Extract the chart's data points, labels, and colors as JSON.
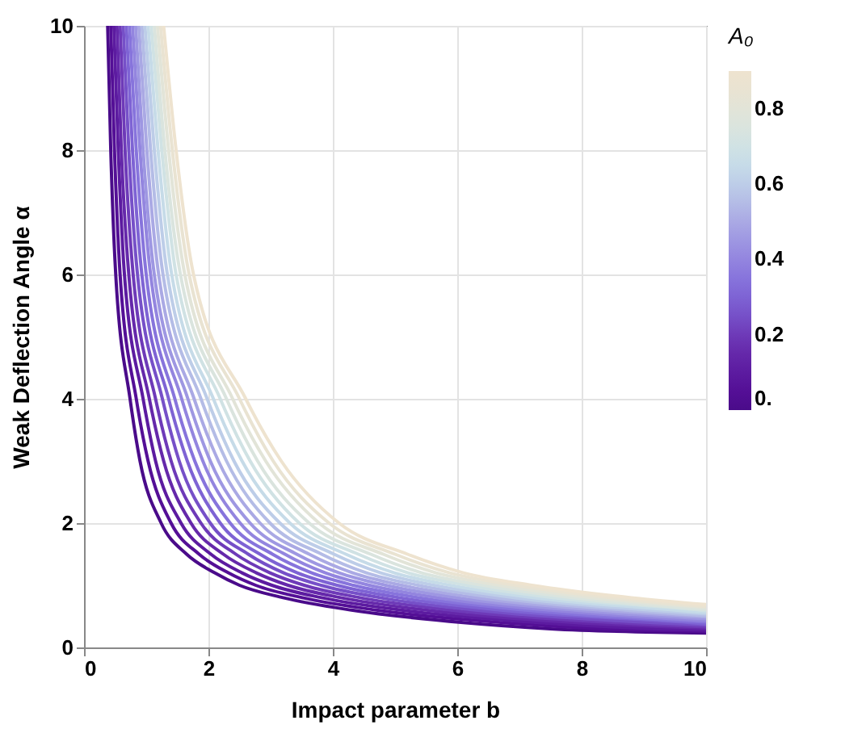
{
  "chart_data": {
    "type": "line",
    "xlabel": "Impact parameter b",
    "ylabel": "Weak Deflection Angle α",
    "legend_title": "A₀",
    "xlim": [
      0,
      10
    ],
    "ylim": [
      0,
      10
    ],
    "xticks": [
      0,
      2,
      4,
      6,
      8,
      10
    ],
    "yticks": [
      0,
      2,
      4,
      6,
      8,
      10
    ],
    "grid": true,
    "clim": [
      0,
      0.9
    ],
    "cticks": [
      {
        "value": 0,
        "label": "0."
      },
      0.2,
      0.4,
      0.6,
      0.8
    ],
    "series": [
      {
        "color": "#4a0b8a",
        "x": [
          0.38,
          0.43,
          0.51,
          0.74,
          0.9,
          1.24,
          1.65,
          2.1,
          2.5,
          3.2,
          4.3,
          6.1,
          7.5,
          10
        ],
        "values": [
          10,
          8,
          6,
          4,
          3,
          2,
          1.5,
          1.2,
          1.0,
          0.8,
          0.6,
          0.4,
          0.3,
          0.23
        ]
      },
      {
        "color": "#540f96",
        "x": [
          0.43,
          0.49,
          0.58,
          0.84,
          1.03,
          1.4,
          1.85,
          2.32,
          2.76,
          3.51,
          4.7,
          6.71,
          8.36,
          10
        ],
        "values": [
          10,
          8,
          6,
          4,
          3,
          2,
          1.5,
          1.2,
          1.0,
          0.8,
          0.6,
          0.4,
          0.3,
          0.26
        ]
      },
      {
        "color": "#5c1ba0",
        "x": [
          0.48,
          0.55,
          0.65,
          0.95,
          1.15,
          1.56,
          2.04,
          2.54,
          3.02,
          3.82,
          5.1,
          7.31,
          9.22,
          10
        ],
        "values": [
          10,
          8,
          6,
          4,
          3,
          2,
          1.5,
          1.2,
          1.0,
          0.8,
          0.6,
          0.4,
          0.3,
          0.28
        ]
      },
      {
        "color": "#6528aa",
        "x": [
          0.53,
          0.6,
          0.72,
          1.05,
          1.28,
          1.72,
          2.24,
          2.77,
          3.28,
          4.13,
          5.5,
          7.92,
          10
        ],
        "values": [
          10,
          8,
          6,
          4,
          3,
          2,
          1.5,
          1.2,
          1.0,
          0.8,
          0.6,
          0.4,
          0.31
        ]
      },
      {
        "color": "#6e3ab8",
        "x": [
          0.58,
          0.66,
          0.79,
          1.15,
          1.4,
          1.88,
          2.44,
          2.99,
          3.54,
          4.44,
          5.9,
          8.52,
          10
        ],
        "values": [
          10,
          8,
          6,
          4,
          3,
          2,
          1.5,
          1.2,
          1.0,
          0.8,
          0.6,
          0.4,
          0.33
        ]
      },
      {
        "color": "#7650c8",
        "x": [
          0.63,
          0.72,
          0.86,
          1.26,
          1.53,
          2.03,
          2.64,
          3.21,
          3.81,
          4.76,
          6.3,
          9.13,
          10
        ],
        "values": [
          10,
          8,
          6,
          4,
          3,
          2,
          1.5,
          1.2,
          1.0,
          0.8,
          0.6,
          0.4,
          0.36
        ]
      },
      {
        "color": "#7e63d4",
        "x": [
          0.68,
          0.78,
          0.93,
          1.36,
          1.66,
          2.19,
          2.83,
          3.43,
          4.07,
          5.07,
          6.7,
          9.73,
          10
        ],
        "values": [
          10,
          8,
          6,
          4,
          3,
          2,
          1.5,
          1.2,
          1.0,
          0.8,
          0.6,
          0.4,
          0.38
        ]
      },
      {
        "color": "#8774dc",
        "x": [
          0.73,
          0.84,
          1.0,
          1.46,
          1.78,
          2.35,
          3.03,
          3.66,
          4.33,
          5.38,
          7.1,
          10
        ],
        "values": [
          10,
          8,
          6,
          4,
          3,
          2,
          1.5,
          1.2,
          1.0,
          0.8,
          0.6,
          0.41
        ]
      },
      {
        "color": "#9385df",
        "x": [
          0.78,
          0.9,
          1.07,
          1.57,
          1.91,
          2.51,
          3.23,
          3.88,
          4.59,
          5.69,
          7.5,
          10
        ],
        "values": [
          10,
          8,
          6,
          4,
          3,
          2,
          1.5,
          1.2,
          1.0,
          0.8,
          0.6,
          0.43
        ]
      },
      {
        "color": "#9e97e2",
        "x": [
          0.83,
          0.95,
          1.13,
          1.67,
          2.03,
          2.67,
          3.42,
          4.1,
          4.85,
          6.0,
          7.9,
          10
        ],
        "values": [
          10,
          8,
          6,
          4,
          3,
          2,
          1.5,
          1.2,
          1.0,
          0.8,
          0.6,
          0.46
        ]
      },
      {
        "color": "#aaa9e4",
        "x": [
          0.88,
          1.01,
          1.2,
          1.77,
          2.16,
          2.83,
          3.62,
          4.32,
          5.11,
          6.31,
          8.3,
          10
        ],
        "values": [
          10,
          8,
          6,
          4,
          3,
          2,
          1.5,
          1.2,
          1.0,
          0.8,
          0.6,
          0.49
        ]
      },
      {
        "color": "#b4bce6",
        "x": [
          0.93,
          1.07,
          1.27,
          1.88,
          2.29,
          2.99,
          3.82,
          4.54,
          5.37,
          6.62,
          8.7,
          10
        ],
        "values": [
          10,
          8,
          6,
          4,
          3,
          2,
          1.5,
          1.2,
          1.0,
          0.8,
          0.6,
          0.51
        ]
      },
      {
        "color": "#bdcde8",
        "x": [
          0.98,
          1.13,
          1.34,
          1.98,
          2.41,
          3.15,
          4.02,
          4.77,
          5.63,
          6.93,
          9.1,
          10
        ],
        "values": [
          10,
          8,
          6,
          4,
          3,
          2,
          1.5,
          1.2,
          1.0,
          0.8,
          0.6,
          0.54
        ]
      },
      {
        "color": "#c6dbe8",
        "x": [
          1.03,
          1.19,
          1.41,
          2.08,
          2.54,
          3.31,
          4.21,
          4.99,
          5.89,
          7.24,
          9.5,
          10
        ],
        "values": [
          10,
          8,
          6,
          4,
          3,
          2,
          1.5,
          1.2,
          1.0,
          0.8,
          0.6,
          0.56
        ]
      },
      {
        "color": "#d0e2e4",
        "x": [
          1.08,
          1.25,
          1.48,
          2.19,
          2.67,
          3.46,
          4.41,
          5.21,
          6.16,
          7.56,
          9.9,
          10
        ],
        "values": [
          10,
          8,
          6,
          4,
          3,
          2,
          1.5,
          1.2,
          1.0,
          0.8,
          0.6,
          0.59
        ]
      },
      {
        "color": "#dae4de",
        "x": [
          1.13,
          1.3,
          1.55,
          2.29,
          2.79,
          3.62,
          4.61,
          5.43,
          6.42,
          7.87,
          10
        ],
        "values": [
          10,
          8,
          6,
          4,
          3,
          2,
          1.5,
          1.2,
          1.0,
          0.8,
          0.61
        ]
      },
      {
        "color": "#e2e4d8",
        "x": [
          1.18,
          1.36,
          1.62,
          2.39,
          2.92,
          3.78,
          4.81,
          5.66,
          6.68,
          8.18,
          10
        ],
        "values": [
          10,
          8,
          6,
          4,
          3,
          2,
          1.5,
          1.2,
          1.0,
          0.8,
          0.64
        ]
      },
      {
        "color": "#e9e3d2",
        "x": [
          1.23,
          1.42,
          1.69,
          2.5,
          3.04,
          3.94,
          5.0,
          5.88,
          6.94,
          8.49,
          10
        ],
        "values": [
          10,
          8,
          6,
          4,
          3,
          2,
          1.5,
          1.2,
          1.0,
          0.8,
          0.66
        ]
      },
      {
        "color": "#eee3cf",
        "x": [
          1.28,
          1.48,
          1.76,
          2.6,
          3.17,
          4.1,
          5.2,
          6.1,
          7.2,
          8.8,
          10
        ],
        "values": [
          10,
          8,
          6,
          4,
          3,
          2,
          1.5,
          1.2,
          1.0,
          0.8,
          0.69
        ]
      }
    ]
  }
}
